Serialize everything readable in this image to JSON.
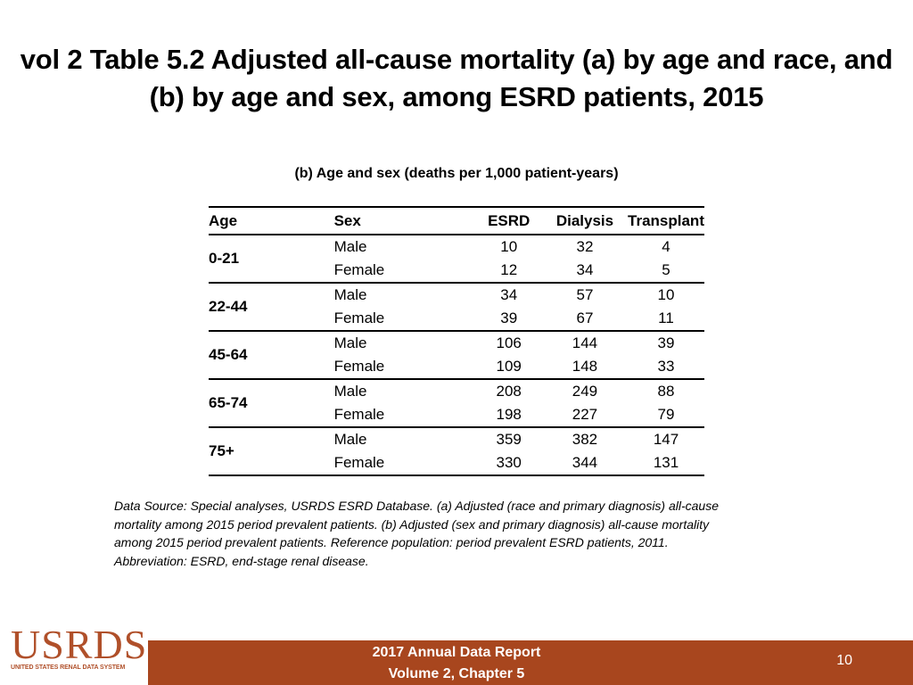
{
  "title_line1": "vol 2 Table 5.2 Adjusted all-cause mortality (a) by age and race, and",
  "title_line2": "(b) by age and sex, among ESRD patients, 2015",
  "table": {
    "caption": "(b) Age and sex (deaths per 1,000 patient-years)",
    "headers": [
      "Age",
      "Sex",
      "ESRD",
      "Dialysis",
      "Transplant"
    ],
    "groups": [
      {
        "age": "0-21",
        "rows": [
          {
            "sex": "Male",
            "esrd": "10",
            "dialysis": "32",
            "transplant": "4"
          },
          {
            "sex": "Female",
            "esrd": "12",
            "dialysis": "34",
            "transplant": "5"
          }
        ]
      },
      {
        "age": "22-44",
        "rows": [
          {
            "sex": "Male",
            "esrd": "34",
            "dialysis": "57",
            "transplant": "10"
          },
          {
            "sex": "Female",
            "esrd": "39",
            "dialysis": "67",
            "transplant": "11"
          }
        ]
      },
      {
        "age": "45-64",
        "rows": [
          {
            "sex": "Male",
            "esrd": "106",
            "dialysis": "144",
            "transplant": "39"
          },
          {
            "sex": "Female",
            "esrd": "109",
            "dialysis": "148",
            "transplant": "33"
          }
        ]
      },
      {
        "age": "65-74",
        "rows": [
          {
            "sex": "Male",
            "esrd": "208",
            "dialysis": "249",
            "transplant": "88"
          },
          {
            "sex": "Female",
            "esrd": "198",
            "dialysis": "227",
            "transplant": "79"
          }
        ]
      },
      {
        "age": "75+",
        "rows": [
          {
            "sex": "Male",
            "esrd": "359",
            "dialysis": "382",
            "transplant": "147"
          },
          {
            "sex": "Female",
            "esrd": "330",
            "dialysis": "344",
            "transplant": "131"
          }
        ]
      }
    ]
  },
  "source_note": {
    "line1": "Data Source: Special analyses, USRDS ESRD Database. (a) Adjusted (race and primary diagnosis) all-cause",
    "line2": "mortality among 2015 period prevalent patients. (b) Adjusted (sex and primary diagnosis) all-cause mortality",
    "line3": "among 2015 period prevalent patients. Reference population: period prevalent ESRD patients, 2011.",
    "line4": "Abbreviation: ESRD, end-stage renal disease."
  },
  "logo": {
    "word": "USRDS",
    "sub": "UNITED STATES RENAL DATA SYSTEM"
  },
  "footer": {
    "line1": "2017 Annual Data Report",
    "line2": "Volume 2, Chapter 5",
    "page": "10"
  },
  "colors": {
    "footer_bar": "#a8461e",
    "logo": "#b0502a"
  }
}
